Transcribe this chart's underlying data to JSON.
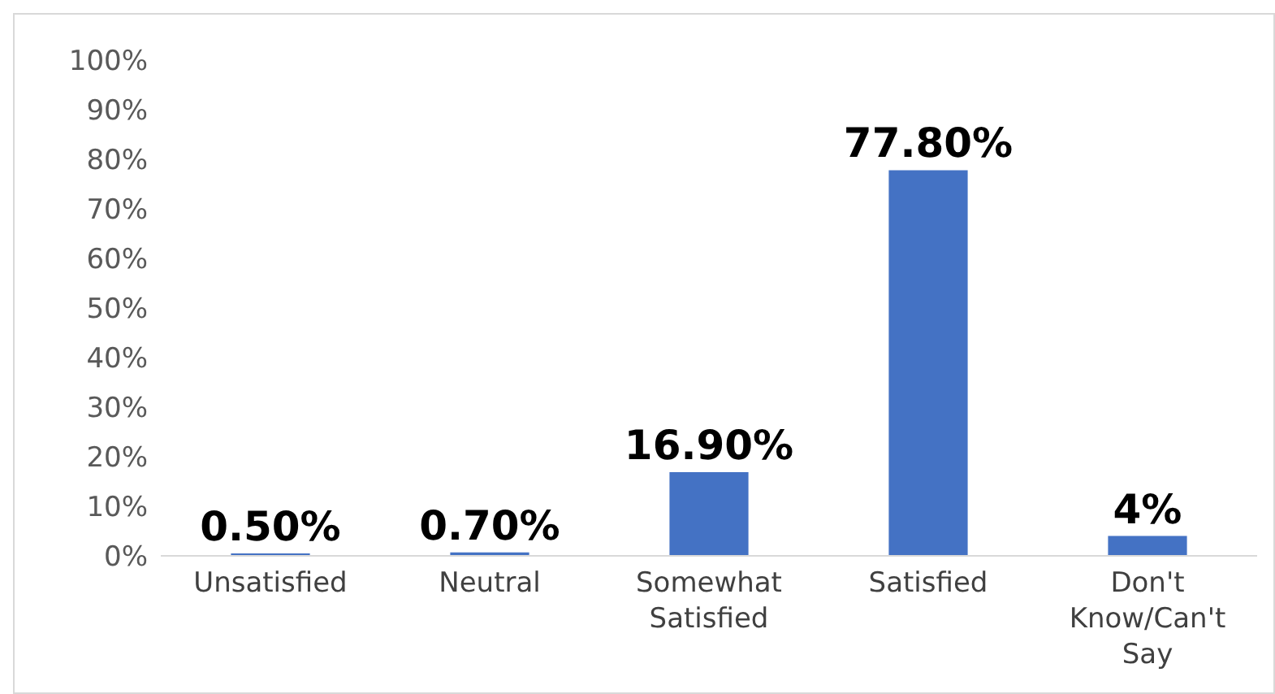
{
  "chart_data": {
    "type": "bar",
    "categories": [
      "Unsatisfied",
      "Neutral",
      "Somewhat Satisfied",
      "Satisfied",
      "Don't Know/Can't Say"
    ],
    "values": [
      0.5,
      0.7,
      16.9,
      77.8,
      4
    ],
    "value_labels": [
      "0.50%",
      "0.70%",
      "16.90%",
      "77.80%",
      "4%"
    ],
    "color": "#4472c4",
    "ylim": [
      0,
      100
    ],
    "yticks": [
      {
        "value": 0,
        "label": "0%"
      },
      {
        "value": 10,
        "label": "10%"
      },
      {
        "value": 20,
        "label": "20%"
      },
      {
        "value": 30,
        "label": "30%"
      },
      {
        "value": 40,
        "label": "40%"
      },
      {
        "value": 50,
        "label": "50%"
      },
      {
        "value": 60,
        "label": "60%"
      },
      {
        "value": 70,
        "label": "70%"
      },
      {
        "value": 80,
        "label": "80%"
      },
      {
        "value": 90,
        "label": "90%"
      },
      {
        "value": 100,
        "label": "100%"
      }
    ],
    "grid": false
  }
}
